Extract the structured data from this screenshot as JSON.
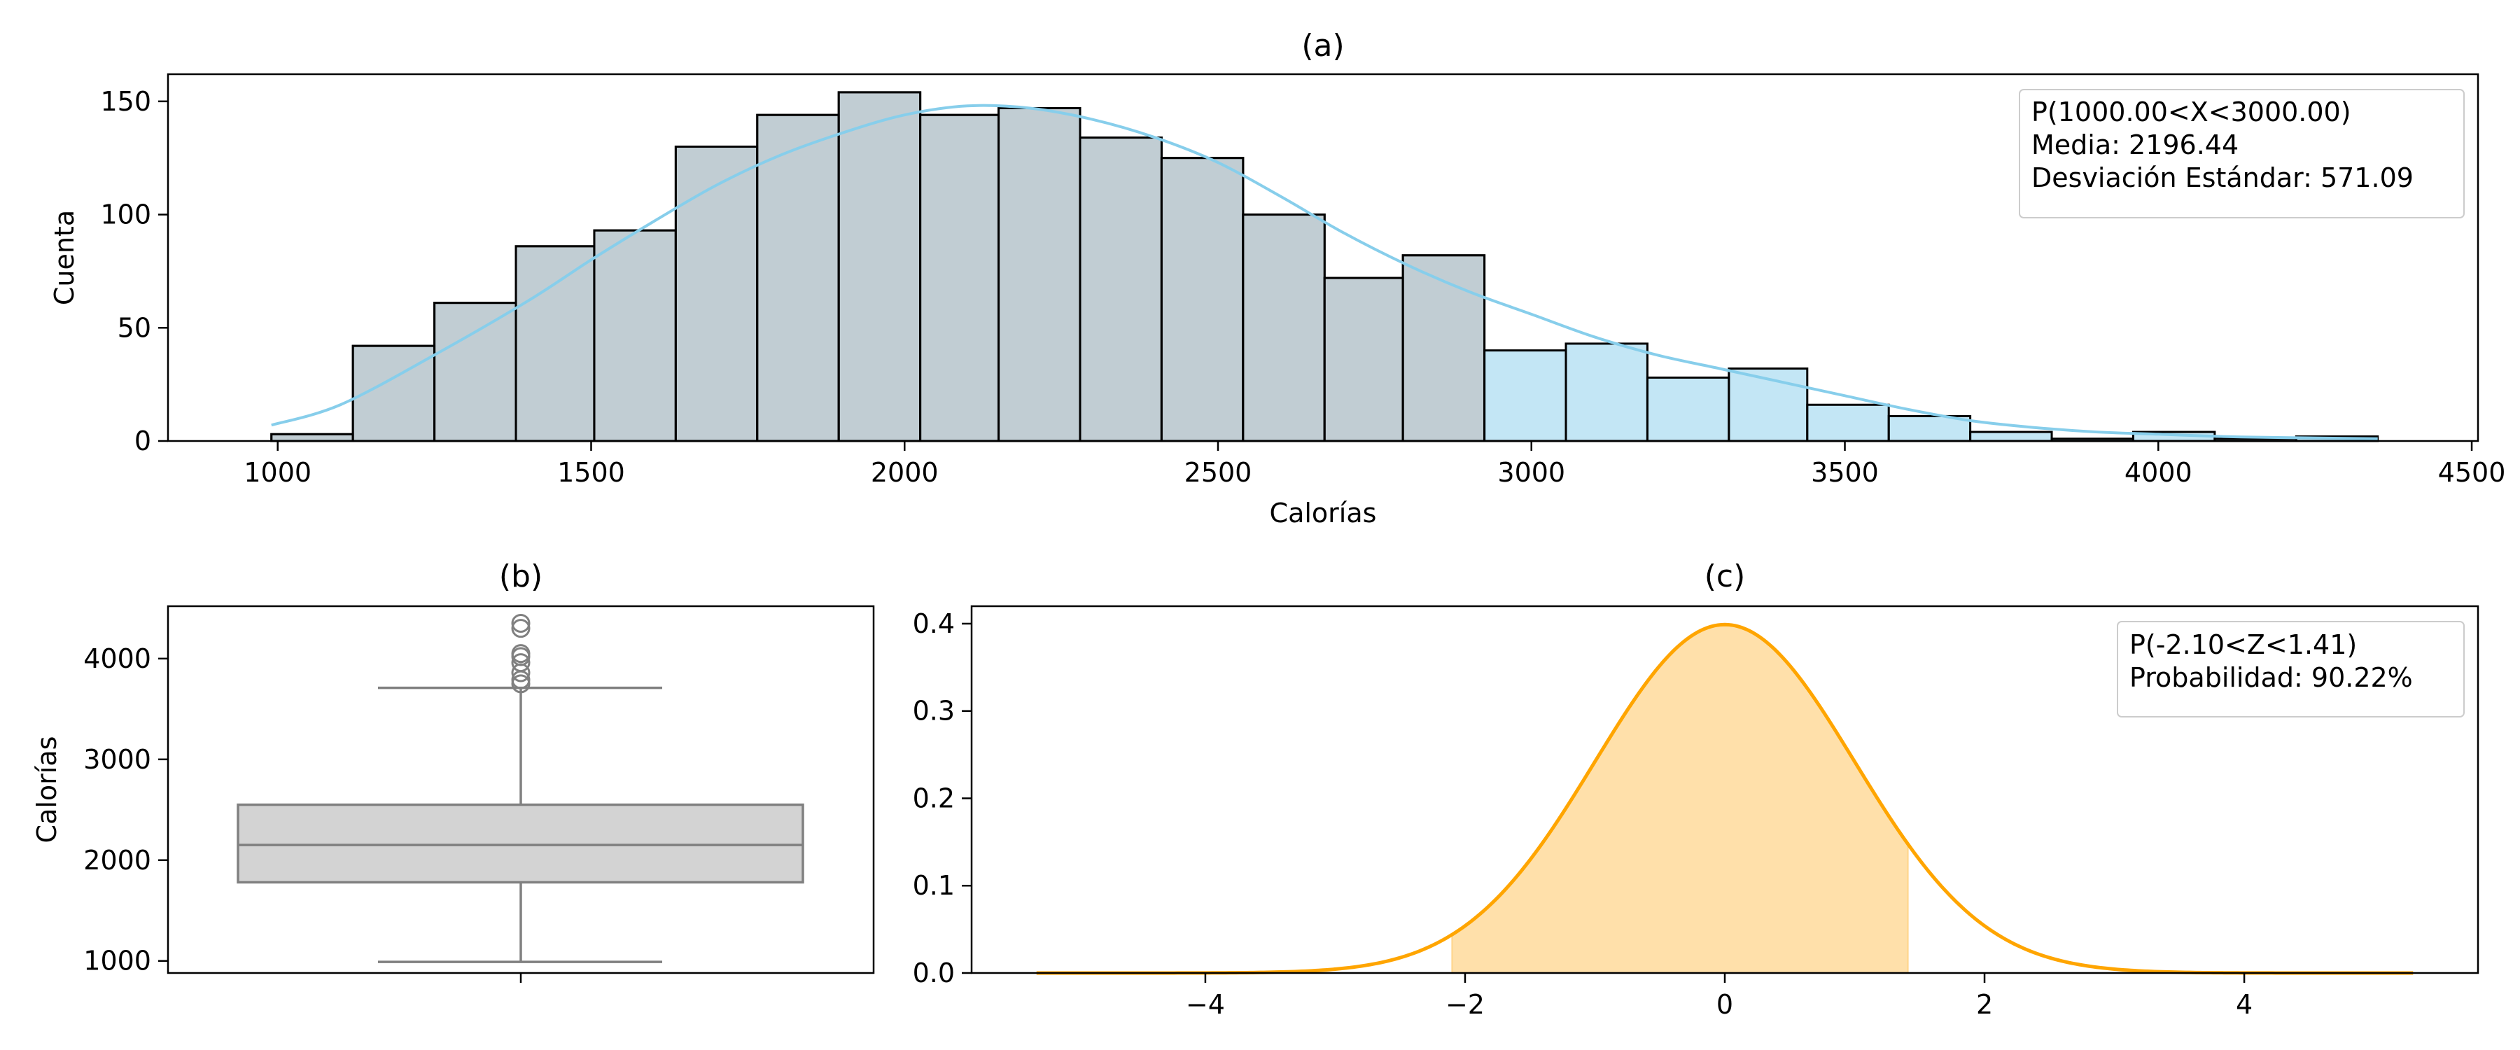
{
  "chart_data": [
    {
      "id": "a",
      "type": "bar",
      "title": "(a)",
      "xlabel": "Calorías",
      "ylabel": "Cuenta",
      "xlim": [
        825,
        4510
      ],
      "ylim": [
        0,
        162
      ],
      "xticks": [
        1000,
        1500,
        2000,
        2500,
        3000,
        3500,
        4000,
        4500
      ],
      "yticks": [
        0,
        50,
        100,
        150
      ],
      "bin_edges": [
        990,
        1120,
        1250,
        1380,
        1505,
        1635,
        1765,
        1895,
        2025,
        2150,
        2280,
        2410,
        2540,
        2670,
        2795,
        2925,
        3055,
        3185,
        3315,
        3440,
        3570,
        3700,
        3830,
        3960,
        4090,
        4220,
        4350
      ],
      "counts": [
        3,
        42,
        61,
        86,
        93,
        130,
        144,
        154,
        144,
        147,
        134,
        125,
        100,
        72,
        82,
        40,
        43,
        28,
        32,
        16,
        11,
        4,
        1,
        4,
        1,
        2
      ],
      "shaded_interval": [
        1000,
        3000
      ],
      "kde": {
        "x": [
          990,
          1100,
          1250,
          1400,
          1500,
          1600,
          1700,
          1800,
          1900,
          2000,
          2100,
          2200,
          2300,
          2400,
          2500,
          2600,
          2700,
          2800,
          2900,
          3000,
          3100,
          3200,
          3300,
          3400,
          3500,
          3600,
          3700,
          3800,
          3900,
          4000,
          4100,
          4200,
          4350
        ],
        "y": [
          7,
          16,
          38,
          62,
          80,
          97,
          113,
          126,
          136,
          144,
          148,
          147,
          142,
          134,
          123,
          108,
          92,
          78,
          66,
          56,
          46,
          38,
          32,
          26,
          20,
          14,
          9,
          6,
          4,
          3,
          2,
          1.5,
          1
        ]
      },
      "colors": {
        "bar": "#87ceeb",
        "shaded": "#c0c0c0",
        "kde": "#87ceeb"
      },
      "legend_position": "top-right",
      "legend_lines": [
        "P(1000.00<X<3000.00)",
        "Media: 2196.44",
        "Desviación Estándar: 571.09"
      ]
    },
    {
      "id": "b",
      "type": "box",
      "title": "(b)",
      "ylabel": "Calorías",
      "ylim": [
        880,
        4520
      ],
      "yticks": [
        1000,
        2000,
        3000,
        4000
      ],
      "box": {
        "whisker_low": 990,
        "q1": 1780,
        "median": 2150,
        "q3": 2550,
        "whisker_high": 3710
      },
      "outliers": [
        3750,
        3790,
        3860,
        3960,
        4020,
        4050,
        4300,
        4350
      ],
      "colors": {
        "box": "#d3d3d3",
        "line": "#808080"
      }
    },
    {
      "id": "c",
      "type": "area",
      "title": "(c)",
      "xlim": [
        -5.8,
        5.8
      ],
      "ylim": [
        0,
        0.42
      ],
      "xticks": [
        -4,
        -2,
        0,
        2,
        4
      ],
      "xtick_labels": [
        "−4",
        "−2",
        "0",
        "2",
        "4"
      ],
      "yticks": [
        0.0,
        0.1,
        0.2,
        0.3,
        0.4
      ],
      "ytick_labels": [
        "0.0",
        "0.1",
        "0.2",
        "0.3",
        "0.4"
      ],
      "curve_range": [
        -5.3,
        5.3
      ],
      "shaded_interval": [
        -2.1,
        1.41
      ],
      "colors": {
        "line": "#ffa500",
        "fill": "#ffe0aa"
      },
      "legend_position": "top-right",
      "legend_lines": [
        "P(-2.10<Z<1.41)",
        "Probabilidad:  90.22%"
      ]
    }
  ]
}
